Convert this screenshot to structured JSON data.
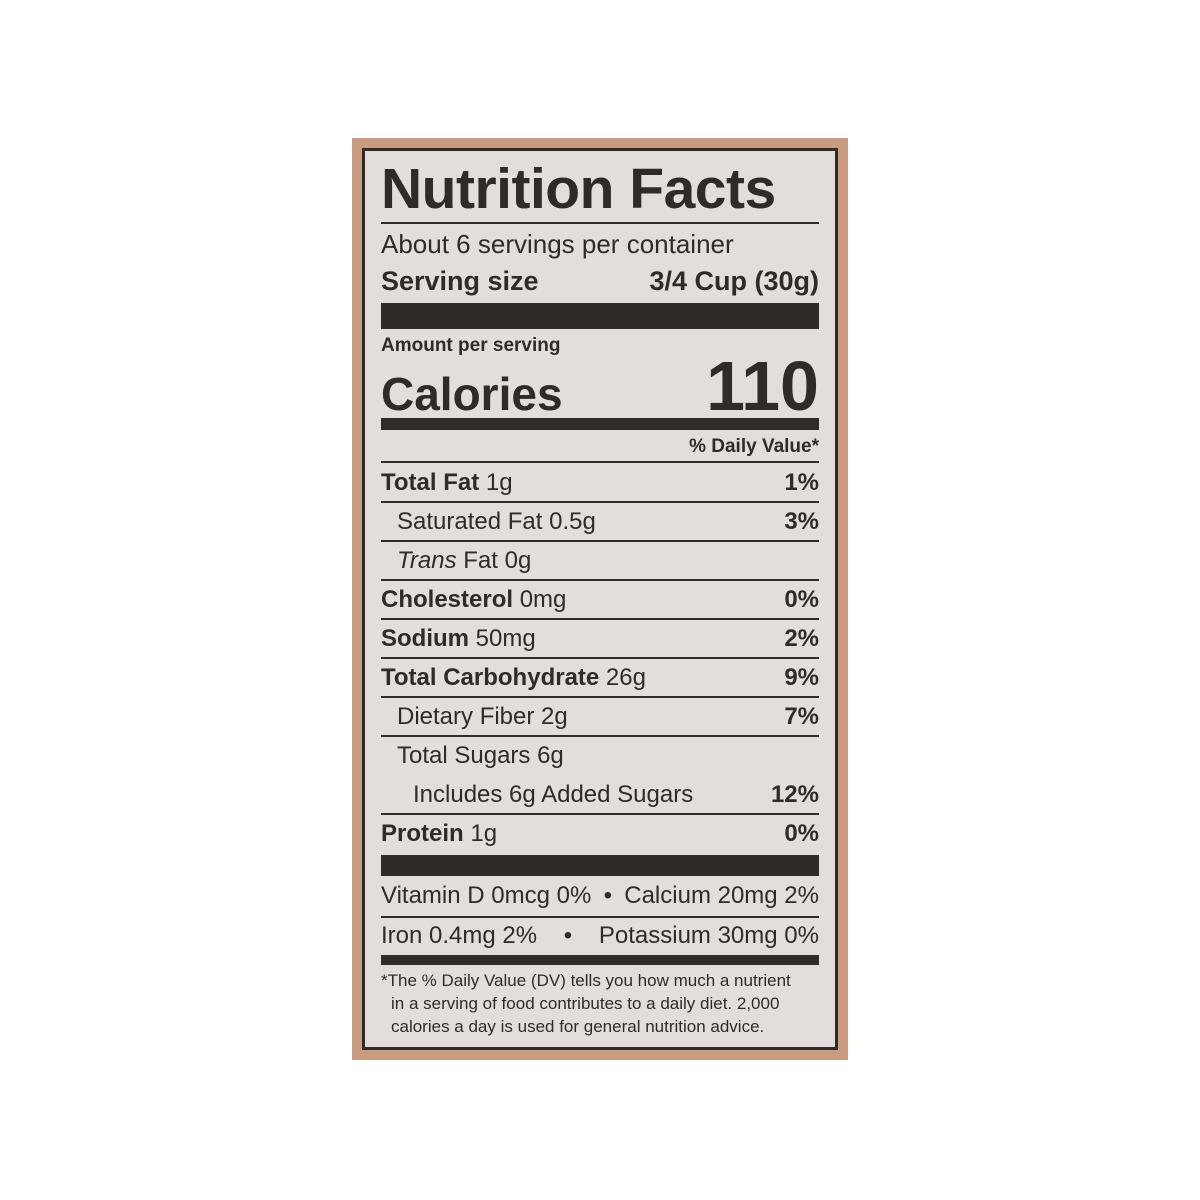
{
  "colors": {
    "background": "#c99b80",
    "panel": "#e3dedb",
    "ink": "#2e2b29"
  },
  "title": "Nutrition Facts",
  "servings_per_container": "About 6 servings per container",
  "serving_size": {
    "label": "Serving size",
    "value": "3/4 Cup (30g)"
  },
  "amount_per_serving": "Amount per serving",
  "calories": {
    "label": "Calories",
    "value": "110"
  },
  "daily_value_header": "% Daily Value*",
  "nutrients": [
    {
      "name": "Total Fat",
      "amount": "1g",
      "dv": "1%"
    },
    {
      "name": "Saturated Fat",
      "amount": "0.5g",
      "dv": "3%"
    },
    {
      "name": "Trans",
      "name_suffix": "Fat",
      "amount": "0g",
      "dv": ""
    },
    {
      "name": "Cholesterol",
      "amount": "0mg",
      "dv": "0%"
    },
    {
      "name": "Sodium",
      "amount": "50mg",
      "dv": "2%"
    },
    {
      "name": "Total Carbohydrate",
      "amount": "26g",
      "dv": "9%"
    },
    {
      "name": "Dietary Fiber",
      "amount": "2g",
      "dv": "7%"
    },
    {
      "name": "Total Sugars",
      "amount": "6g",
      "dv": ""
    },
    {
      "name": "Includes 6g Added Sugars",
      "amount": "",
      "dv": "12%"
    },
    {
      "name": "Protein",
      "amount": "1g",
      "dv": "0%"
    }
  ],
  "micros": [
    {
      "left": "Vitamin D 0mcg 0%",
      "sep": "•",
      "right": "Calcium 20mg 2%"
    },
    {
      "left": "Iron 0.4mg 2%",
      "sep": "•",
      "right": "Potassium 30mg 0%"
    }
  ],
  "footnote": [
    "*The % Daily Value (DV) tells you how much a nutrient",
    "in a serving of food contributes to a daily diet. 2,000",
    "calories a day is used for general nutrition advice."
  ]
}
